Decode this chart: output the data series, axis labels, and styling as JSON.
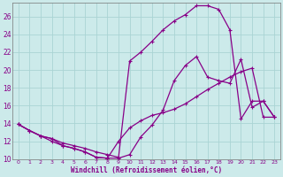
{
  "xlabel": "Windchill (Refroidissement éolien,°C)",
  "bg_color": "#cceaea",
  "grid_color": "#aad4d4",
  "line_color": "#880088",
  "xlim": [
    -0.5,
    23.5
  ],
  "ylim": [
    10,
    27.5
  ],
  "yticks": [
    10,
    12,
    14,
    16,
    18,
    20,
    22,
    24,
    26
  ],
  "xticks": [
    0,
    1,
    2,
    3,
    4,
    5,
    6,
    7,
    8,
    9,
    10,
    11,
    12,
    13,
    14,
    15,
    16,
    17,
    18,
    19,
    20,
    21,
    22,
    23
  ],
  "line1_x": [
    0,
    1,
    2,
    3,
    4,
    5,
    6,
    7,
    8,
    9,
    10,
    11,
    12,
    13,
    14,
    15,
    16,
    17,
    18,
    19,
    20,
    21,
    22,
    23
  ],
  "line1_y": [
    13.9,
    13.2,
    12.6,
    12.3,
    11.5,
    11.2,
    10.8,
    10.2,
    10.1,
    12.0,
    13.5,
    14.3,
    14.9,
    15.2,
    15.6,
    16.2,
    17.0,
    17.8,
    18.5,
    19.2,
    19.8,
    20.2,
    14.7,
    14.7
  ],
  "line2_x": [
    0,
    1,
    2,
    3,
    4,
    5,
    6,
    7,
    8,
    9,
    10,
    11,
    12,
    13,
    14,
    15,
    16,
    17,
    18,
    19,
    20,
    21,
    22,
    23
  ],
  "line2_y": [
    13.9,
    13.2,
    12.6,
    12.3,
    11.8,
    11.5,
    11.2,
    10.8,
    10.5,
    10.2,
    21.0,
    22.0,
    23.2,
    24.5,
    25.5,
    26.2,
    27.2,
    27.2,
    26.8,
    24.5,
    14.5,
    16.5,
    16.5,
    14.7
  ],
  "line3_x": [
    0,
    1,
    2,
    3,
    4,
    5,
    6,
    7,
    8,
    9,
    10,
    11,
    12,
    13,
    14,
    15,
    16,
    17,
    18,
    19,
    20,
    21,
    22,
    23
  ],
  "line3_y": [
    13.9,
    13.2,
    12.6,
    12.0,
    11.5,
    11.2,
    10.8,
    10.2,
    10.1,
    10.1,
    10.5,
    12.5,
    13.8,
    15.5,
    18.8,
    20.5,
    21.5,
    19.2,
    18.8,
    18.5,
    21.2,
    15.8,
    16.5,
    14.7
  ]
}
